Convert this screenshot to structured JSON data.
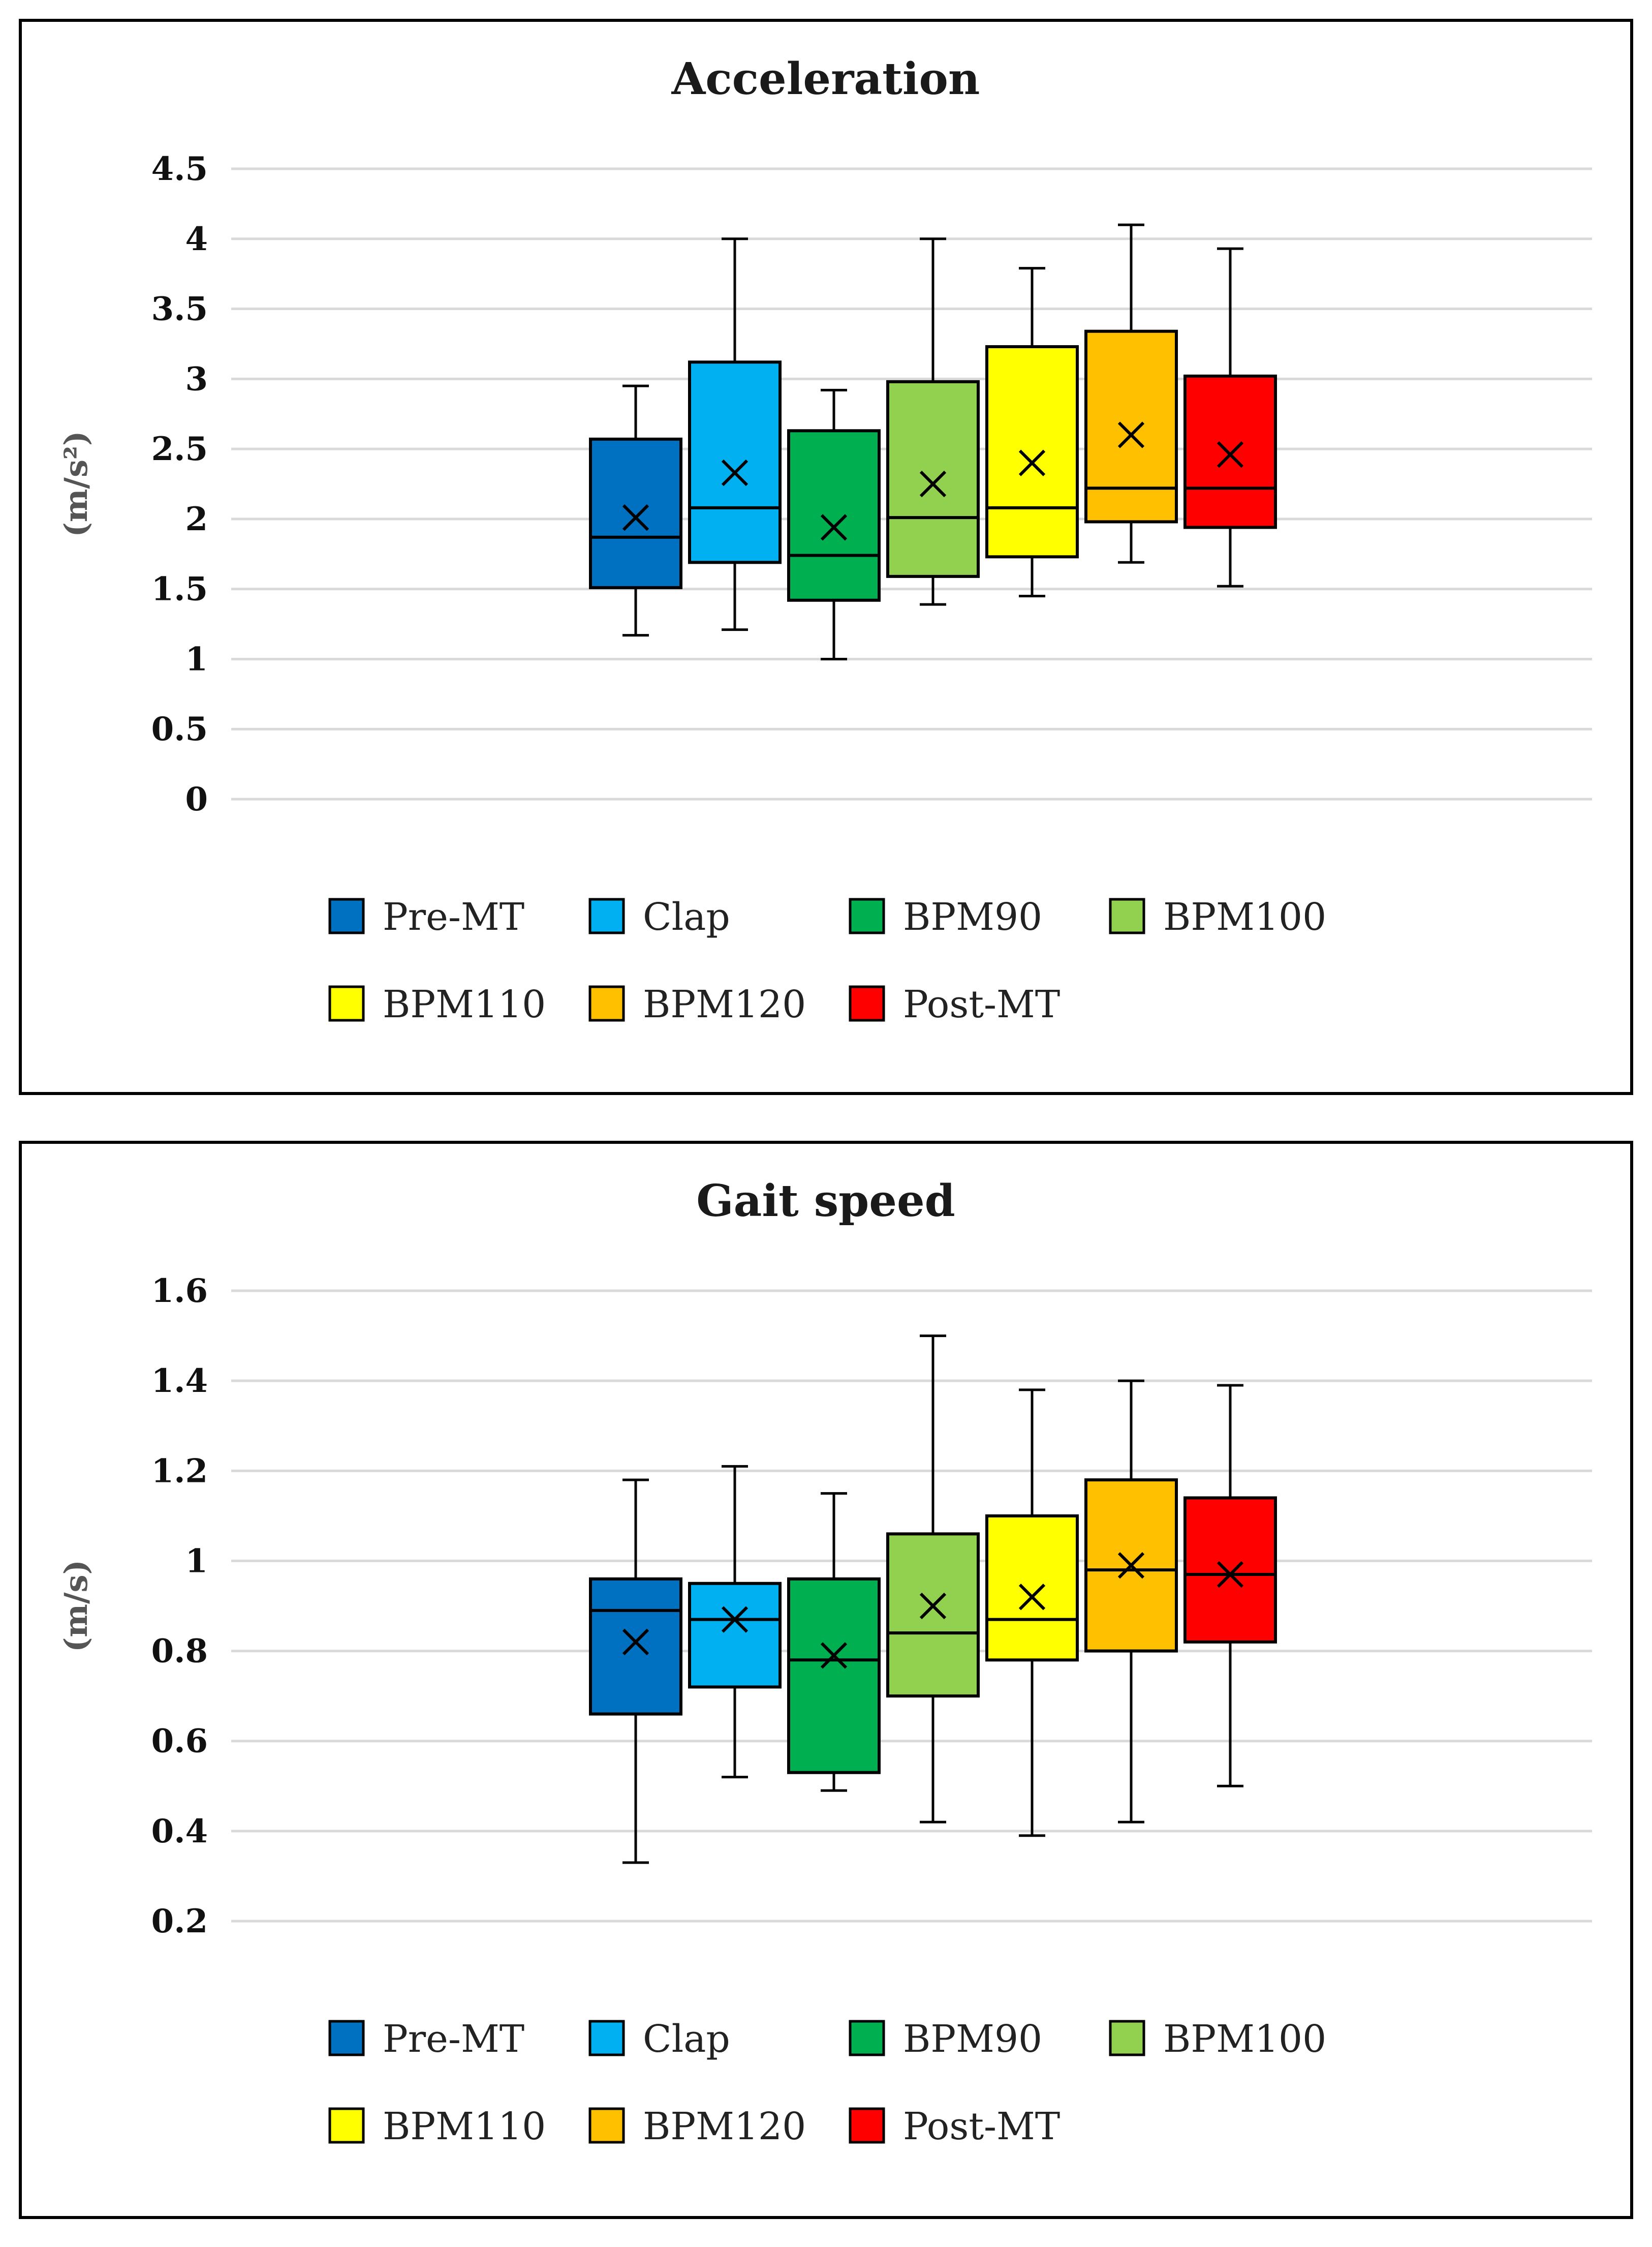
{
  "chart_data": [
    {
      "type": "boxplot",
      "title": "Acceleration",
      "ylabel": "(m/s²)",
      "ylim": [
        0,
        4.5
      ],
      "yticks": [
        0,
        0.5,
        1,
        1.5,
        2,
        2.5,
        3,
        3.5,
        4,
        4.5
      ],
      "ytick_labels": [
        "0",
        "0.5",
        "1",
        "1.5",
        "2",
        "2.5",
        "3",
        "3.5",
        "4",
        "4.5"
      ],
      "grid": true,
      "legend": [
        "Pre-MT",
        "Clap",
        "BPM90",
        "BPM100",
        "BPM110",
        "BPM120",
        "Post-MT"
      ],
      "series": [
        {
          "name": "Pre-MT",
          "color": "#0070C0",
          "min": 1.17,
          "q1": 1.51,
          "median": 1.87,
          "q3": 2.57,
          "max": 2.95,
          "mean": 2.01
        },
        {
          "name": "Clap",
          "color": "#00B0F0",
          "min": 1.21,
          "q1": 1.69,
          "median": 2.08,
          "q3": 3.12,
          "max": 4.0,
          "mean": 2.33
        },
        {
          "name": "BPM90",
          "color": "#00B050",
          "min": 1.0,
          "q1": 1.42,
          "median": 1.74,
          "q3": 2.63,
          "max": 2.92,
          "mean": 1.94
        },
        {
          "name": "BPM100",
          "color": "#92D050",
          "min": 1.39,
          "q1": 1.59,
          "median": 2.01,
          "q3": 2.98,
          "max": 4.0,
          "mean": 2.25
        },
        {
          "name": "BPM110",
          "color": "#FFFF00",
          "min": 1.45,
          "q1": 1.73,
          "median": 2.08,
          "q3": 3.23,
          "max": 3.79,
          "mean": 2.4
        },
        {
          "name": "BPM120",
          "color": "#FFC000",
          "min": 1.69,
          "q1": 1.98,
          "median": 2.22,
          "q3": 3.34,
          "max": 4.1,
          "mean": 2.6
        },
        {
          "name": "Post-MT",
          "color": "#FF0000",
          "min": 1.52,
          "q1": 1.94,
          "median": 2.22,
          "q3": 3.02,
          "max": 3.93,
          "mean": 2.46
        }
      ]
    },
    {
      "type": "boxplot",
      "title": "Gait speed",
      "ylabel": "(m/s)",
      "ylim": [
        0.2,
        1.6
      ],
      "yticks": [
        0.2,
        0.4,
        0.6,
        0.8,
        1.0,
        1.2,
        1.4,
        1.6
      ],
      "ytick_labels": [
        "0.2",
        "0.4",
        "0.6",
        "0.8",
        "1",
        "1.2",
        "1.4",
        "1.6"
      ],
      "grid": true,
      "legend": [
        "Pre-MT",
        "Clap",
        "BPM90",
        "BPM100",
        "BPM110",
        "BPM120",
        "Post-MT"
      ],
      "series": [
        {
          "name": "Pre-MT",
          "color": "#0070C0",
          "min": 0.33,
          "q1": 0.66,
          "median": 0.89,
          "q3": 0.96,
          "max": 1.18,
          "mean": 0.82
        },
        {
          "name": "Clap",
          "color": "#00B0F0",
          "min": 0.52,
          "q1": 0.72,
          "median": 0.87,
          "q3": 0.95,
          "max": 1.21,
          "mean": 0.87
        },
        {
          "name": "BPM90",
          "color": "#00B050",
          "min": 0.49,
          "q1": 0.53,
          "median": 0.78,
          "q3": 0.96,
          "max": 1.15,
          "mean": 0.79
        },
        {
          "name": "BPM100",
          "color": "#92D050",
          "min": 0.42,
          "q1": 0.7,
          "median": 0.84,
          "q3": 1.06,
          "max": 1.5,
          "mean": 0.9
        },
        {
          "name": "BPM110",
          "color": "#FFFF00",
          "min": 0.39,
          "q1": 0.78,
          "median": 0.87,
          "q3": 1.1,
          "max": 1.38,
          "mean": 0.92
        },
        {
          "name": "BPM120",
          "color": "#FFC000",
          "min": 0.42,
          "q1": 0.8,
          "median": 0.98,
          "q3": 1.18,
          "max": 1.4,
          "mean": 0.99
        },
        {
          "name": "Post-MT",
          "color": "#FF0000",
          "min": 0.5,
          "q1": 0.82,
          "median": 0.97,
          "q3": 1.14,
          "max": 1.39,
          "mean": 0.97
        }
      ]
    }
  ]
}
